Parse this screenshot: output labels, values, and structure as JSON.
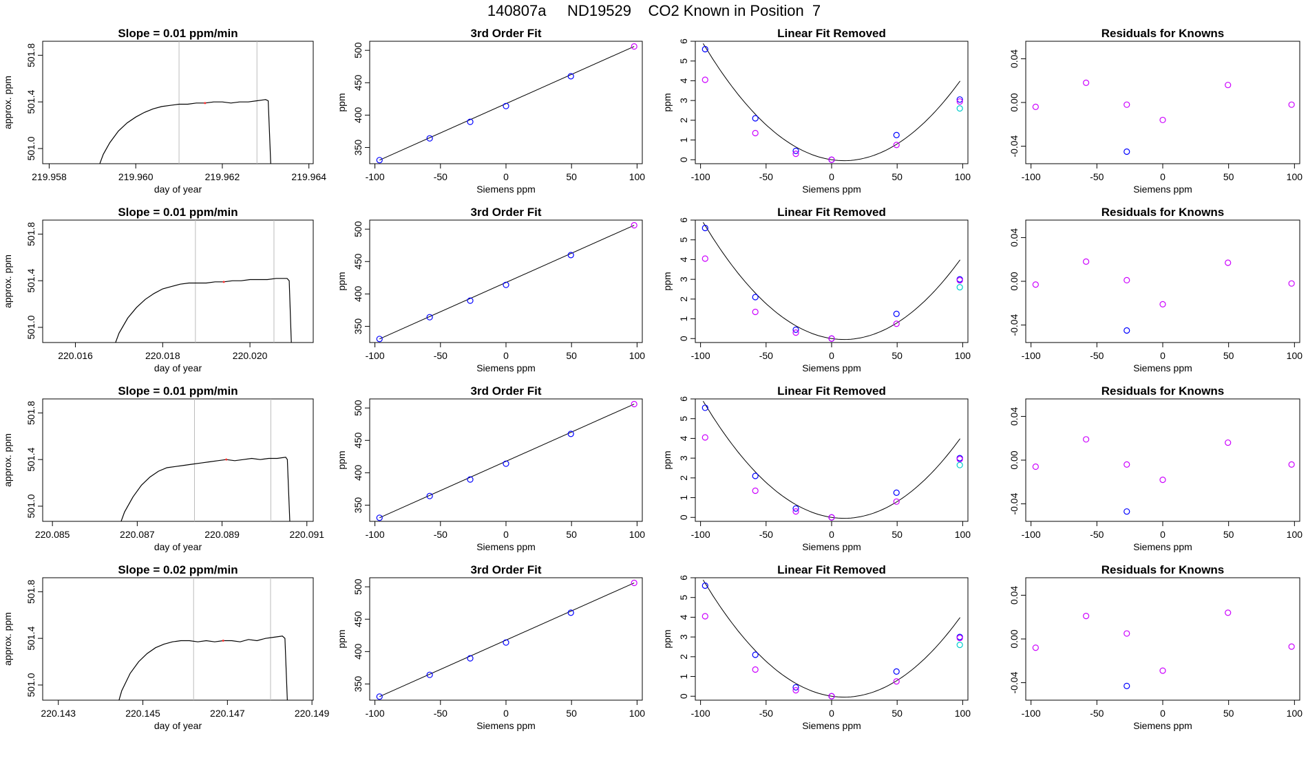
{
  "figure": {
    "title": "140807a     ND19529    CO2 Known in Position  7"
  },
  "labels": {
    "day_of_year": "day of year",
    "approx_ppm": "approx. ppm",
    "ppm": "ppm",
    "siemens": "Siemens ppm",
    "fit_title": "3rd Order Fit",
    "lin_title": "Linear Fit Removed",
    "res_title": "Residuals for Knowns"
  },
  "colors": {
    "line": "#000000",
    "blue": "#0000ff",
    "magenta": "#cc00ff",
    "cyan": "#00cccc",
    "vline": "#bbbbbb",
    "marker": "#ff3333"
  },
  "chart_data": [
    {
      "type": "line",
      "row": 0,
      "title": "Slope =  0.01  ppm/min",
      "xlabel": "day of year",
      "ylabel": "approx. ppm",
      "xlim": [
        219.95785,
        219.9641
      ],
      "ylim": [
        500.87,
        501.92
      ],
      "xticks": [
        "219.958",
        "219.960",
        "219.962",
        "219.964"
      ],
      "yticks": [
        "501.0",
        "501.4",
        "501.8"
      ],
      "vlines": [
        219.961,
        219.9628
      ],
      "series": [
        {
          "name": "signal",
          "x": [
            219.95915,
            219.95925,
            219.9594,
            219.9596,
            219.9598,
            219.96,
            219.9602,
            219.9604,
            219.9606,
            219.9608,
            219.961,
            219.9612,
            219.9614,
            219.9616,
            219.9618,
            219.962,
            219.9622,
            219.9624,
            219.9626,
            219.9628,
            219.963,
            219.96306,
            219.96312
          ],
          "y": [
            500.85,
            500.95,
            501.05,
            501.15,
            501.22,
            501.27,
            501.31,
            501.34,
            501.36,
            501.37,
            501.38,
            501.38,
            501.39,
            501.39,
            501.4,
            501.4,
            501.39,
            501.4,
            501.4,
            501.41,
            501.42,
            501.41,
            500.85
          ]
        }
      ]
    },
    {
      "type": "line",
      "row": 1,
      "title": "Slope =  0.01  ppm/min",
      "xlabel": "day of year",
      "ylabel": "approx. ppm",
      "xlim": [
        220.01525,
        220.02145
      ],
      "ylim": [
        500.87,
        501.92
      ],
      "xticks": [
        "220.016",
        "220.018",
        "220.020"
      ],
      "yticks": [
        "501.0",
        "501.4",
        "501.8"
      ],
      "vlines": [
        220.01875,
        220.02055
      ],
      "series": [
        {
          "name": "signal",
          "x": [
            220.0169,
            220.017,
            220.0172,
            220.0174,
            220.0176,
            220.0178,
            220.018,
            220.0182,
            220.0184,
            220.0186,
            220.0188,
            220.019,
            220.0192,
            220.0194,
            220.0196,
            220.0198,
            220.02,
            220.0202,
            220.0204,
            220.0206,
            220.02085,
            220.0209,
            220.02095
          ],
          "y": [
            500.85,
            500.95,
            501.08,
            501.17,
            501.24,
            501.29,
            501.33,
            501.35,
            501.37,
            501.38,
            501.38,
            501.38,
            501.39,
            501.39,
            501.4,
            501.4,
            501.41,
            501.41,
            501.41,
            501.42,
            501.42,
            501.4,
            500.85
          ]
        }
      ]
    },
    {
      "type": "line",
      "row": 2,
      "title": "Slope =  0.01  ppm/min",
      "xlabel": "day of year",
      "ylabel": "approx. ppm",
      "xlim": [
        220.08477,
        220.09115
      ],
      "ylim": [
        500.87,
        501.92
      ],
      "xticks": [
        "220.085",
        "220.087",
        "220.089",
        "220.091"
      ],
      "yticks": [
        "501.0",
        "501.4",
        "501.8"
      ],
      "vlines": [
        220.08835,
        220.09015
      ],
      "series": [
        {
          "name": "signal",
          "x": [
            220.0866,
            220.0867,
            220.0869,
            220.0871,
            220.0873,
            220.0875,
            220.0877,
            220.0879,
            220.0881,
            220.0883,
            220.0885,
            220.0887,
            220.0889,
            220.0891,
            220.0893,
            220.0895,
            220.0897,
            220.0899,
            220.0901,
            220.0903,
            220.0905,
            220.09054,
            220.0906
          ],
          "y": [
            500.85,
            500.95,
            501.08,
            501.18,
            501.25,
            501.3,
            501.33,
            501.34,
            501.35,
            501.36,
            501.37,
            501.38,
            501.39,
            501.4,
            501.39,
            501.4,
            501.41,
            501.4,
            501.41,
            501.41,
            501.42,
            501.4,
            500.85
          ]
        }
      ]
    },
    {
      "type": "line",
      "row": 3,
      "title": "Slope =  0.02  ppm/min",
      "xlabel": "day of year",
      "ylabel": "approx. ppm",
      "xlim": [
        220.14263,
        220.14903
      ],
      "ylim": [
        500.87,
        501.92
      ],
      "xticks": [
        "220.143",
        "220.145",
        "220.147",
        "220.149"
      ],
      "yticks": [
        "501.0",
        "501.4",
        "501.8"
      ],
      "vlines": [
        220.1462,
        220.14802
      ],
      "series": [
        {
          "name": "signal",
          "x": [
            220.14442,
            220.1445,
            220.1447,
            220.1449,
            220.1451,
            220.1453,
            220.1455,
            220.1457,
            220.1459,
            220.1461,
            220.1463,
            220.1465,
            220.1467,
            220.1469,
            220.1471,
            220.1473,
            220.1475,
            220.1477,
            220.1479,
            220.1481,
            220.1483,
            220.14836,
            220.14842
          ],
          "y": [
            500.85,
            500.95,
            501.1,
            501.2,
            501.27,
            501.32,
            501.35,
            501.37,
            501.38,
            501.38,
            501.37,
            501.38,
            501.37,
            501.38,
            501.38,
            501.37,
            501.39,
            501.38,
            501.4,
            501.41,
            501.42,
            501.4,
            500.85
          ]
        }
      ]
    },
    {
      "type": "scatter",
      "row": 0,
      "title": "3rd Order Fit",
      "xlabel": "Siemens ppm",
      "ylabel": "ppm",
      "xlim": [
        -104,
        104
      ],
      "ylim": [
        325,
        514
      ],
      "xticks": [
        -100,
        -50,
        0,
        50,
        100
      ],
      "yticks": [
        350,
        400,
        450,
        500
      ],
      "x": [
        -96.5,
        -58.2,
        -27.3,
        0,
        49.5,
        97.8
      ],
      "y": [
        330.5,
        364.1,
        389.6,
        414.0,
        460.0,
        506.0
      ],
      "fit": {
        "from": [
          -96.5,
          330.5
        ],
        "to": [
          97.8,
          506.0
        ]
      }
    },
    {
      "type": "scatter",
      "row": 1,
      "title": "3rd Order Fit",
      "xlabel": "Siemens ppm",
      "ylabel": "ppm",
      "xlim": [
        -104,
        104
      ],
      "ylim": [
        325,
        514
      ],
      "xticks": [
        -100,
        -50,
        0,
        50,
        100
      ],
      "yticks": [
        350,
        400,
        450,
        500
      ],
      "x": [
        -96.5,
        -58.2,
        -27.3,
        0,
        49.5,
        97.8
      ],
      "y": [
        330.5,
        364.1,
        389.6,
        414.0,
        460.0,
        506.0
      ],
      "fit": {
        "from": [
          -96.5,
          330.5
        ],
        "to": [
          97.8,
          506.0
        ]
      }
    },
    {
      "type": "scatter",
      "row": 2,
      "title": "3rd Order Fit",
      "xlabel": "Siemens ppm",
      "ylabel": "ppm",
      "xlim": [
        -104,
        104
      ],
      "ylim": [
        325,
        514
      ],
      "xticks": [
        -100,
        -50,
        0,
        50,
        100
      ],
      "yticks": [
        350,
        400,
        450,
        500
      ],
      "x": [
        -96.5,
        -58.2,
        -27.3,
        0,
        49.5,
        97.8
      ],
      "y": [
        330.5,
        364.1,
        389.6,
        414.0,
        460.0,
        506.0
      ],
      "fit": {
        "from": [
          -96.5,
          330.5
        ],
        "to": [
          97.8,
          506.0
        ]
      }
    },
    {
      "type": "scatter",
      "row": 3,
      "title": "3rd Order Fit",
      "xlabel": "Siemens ppm",
      "ylabel": "ppm",
      "xlim": [
        -104,
        104
      ],
      "ylim": [
        325,
        514
      ],
      "xticks": [
        -100,
        -50,
        0,
        50,
        100
      ],
      "yticks": [
        350,
        400,
        450,
        500
      ],
      "x": [
        -96.5,
        -58.2,
        -27.3,
        0,
        49.5,
        97.8
      ],
      "y": [
        330.5,
        364.1,
        389.6,
        414.0,
        460.0,
        506.0
      ],
      "fit": {
        "from": [
          -96.5,
          330.5
        ],
        "to": [
          97.8,
          506.0
        ]
      }
    },
    {
      "type": "scatter",
      "row": 0,
      "title": "Linear Fit Removed",
      "xlabel": "Siemens ppm",
      "ylabel": "ppm",
      "xlim": [
        -104,
        104
      ],
      "ylim": [
        -0.2,
        6.0
      ],
      "xticks": [
        -100,
        -50,
        0,
        50,
        100
      ],
      "yticks": [
        0,
        1,
        2,
        3,
        4,
        5,
        6
      ],
      "curve": {
        "a": 0.000514,
        "b": -0.0097,
        "x0": -98,
        "x1": 98
      },
      "series": [
        {
          "name": "blue",
          "x": [
            -96.5,
            -58.2,
            -27.3,
            0,
            49.5,
            97.8
          ],
          "y": [
            5.6,
            2.1,
            0.45,
            0.0,
            1.25,
            3.05
          ]
        },
        {
          "name": "magenta",
          "x": [
            -96.5,
            -58.2,
            -27.3,
            0,
            49.5,
            97.8
          ],
          "y": [
            4.05,
            1.35,
            0.3,
            0.0,
            0.75,
            2.95
          ]
        },
        {
          "name": "cyan",
          "x": [
            97.8
          ],
          "y": [
            2.6
          ]
        }
      ]
    },
    {
      "type": "scatter",
      "row": 1,
      "title": "Linear Fit Removed",
      "xlabel": "Siemens ppm",
      "ylabel": "ppm",
      "xlim": [
        -104,
        104
      ],
      "ylim": [
        -0.2,
        6.0
      ],
      "xticks": [
        -100,
        -50,
        0,
        50,
        100
      ],
      "yticks": [
        0,
        1,
        2,
        3,
        4,
        5,
        6
      ],
      "curve": {
        "a": 0.000514,
        "b": -0.0097,
        "x0": -98,
        "x1": 98
      },
      "series": [
        {
          "name": "blue",
          "x": [
            -96.5,
            -58.2,
            -27.3,
            0,
            49.5,
            97.8
          ],
          "y": [
            5.6,
            2.1,
            0.45,
            0.0,
            1.25,
            3.0
          ]
        },
        {
          "name": "magenta",
          "x": [
            -96.5,
            -58.2,
            -27.3,
            0,
            49.5,
            97.8
          ],
          "y": [
            4.05,
            1.35,
            0.3,
            0.0,
            0.75,
            2.95
          ]
        },
        {
          "name": "cyan",
          "x": [
            97.8
          ],
          "y": [
            2.6
          ]
        }
      ]
    },
    {
      "type": "scatter",
      "row": 2,
      "title": "Linear Fit Removed",
      "xlabel": "Siemens ppm",
      "ylabel": "ppm",
      "xlim": [
        -104,
        104
      ],
      "ylim": [
        -0.2,
        6.0
      ],
      "xticks": [
        -100,
        -50,
        0,
        50,
        100
      ],
      "yticks": [
        0,
        1,
        2,
        3,
        4,
        5,
        6
      ],
      "curve": {
        "a": 0.000514,
        "b": -0.0097,
        "x0": -98,
        "x1": 98
      },
      "series": [
        {
          "name": "blue",
          "x": [
            -96.5,
            -58.2,
            -27.3,
            0,
            49.5,
            97.8
          ],
          "y": [
            5.55,
            2.1,
            0.45,
            0.0,
            1.25,
            3.0
          ]
        },
        {
          "name": "magenta",
          "x": [
            -96.5,
            -58.2,
            -27.3,
            0,
            49.5,
            97.8
          ],
          "y": [
            4.05,
            1.35,
            0.3,
            0.0,
            0.8,
            2.95
          ]
        },
        {
          "name": "cyan",
          "x": [
            97.8
          ],
          "y": [
            2.65
          ]
        }
      ]
    },
    {
      "type": "scatter",
      "row": 3,
      "title": "Linear Fit Removed",
      "xlabel": "Siemens ppm",
      "ylabel": "ppm",
      "xlim": [
        -104,
        104
      ],
      "ylim": [
        -0.2,
        6.0
      ],
      "xticks": [
        -100,
        -50,
        0,
        50,
        100
      ],
      "yticks": [
        0,
        1,
        2,
        3,
        4,
        5,
        6
      ],
      "curve": {
        "a": 0.000514,
        "b": -0.0097,
        "x0": -98,
        "x1": 98
      },
      "series": [
        {
          "name": "blue",
          "x": [
            -96.5,
            -58.2,
            -27.3,
            0,
            49.5,
            97.8
          ],
          "y": [
            5.6,
            2.1,
            0.45,
            0.0,
            1.25,
            3.0
          ]
        },
        {
          "name": "magenta",
          "x": [
            -96.5,
            -58.2,
            -27.3,
            0,
            49.5,
            97.8
          ],
          "y": [
            4.05,
            1.35,
            0.3,
            0.0,
            0.75,
            2.95
          ]
        },
        {
          "name": "cyan",
          "x": [
            97.8
          ],
          "y": [
            2.6
          ]
        }
      ]
    },
    {
      "type": "scatter",
      "row": 0,
      "title": "Residuals for Knowns",
      "xlabel": "Siemens ppm",
      "ylabel": "",
      "xlim": [
        -104,
        104
      ],
      "ylim": [
        -0.056,
        0.056
      ],
      "xticks": [
        -100,
        -50,
        0,
        50,
        100
      ],
      "yticks": [
        "-0.04",
        "0.00",
        "0.04"
      ],
      "series": [
        {
          "name": "magenta",
          "x": [
            -96.5,
            -58.2,
            -27.3,
            0,
            49.5,
            97.8
          ],
          "y": [
            -0.004,
            0.018,
            -0.002,
            -0.016,
            0.016,
            -0.002
          ]
        },
        {
          "name": "blue",
          "x": [
            -27.3
          ],
          "y": [
            -0.045
          ]
        }
      ]
    },
    {
      "type": "scatter",
      "row": 1,
      "title": "Residuals for Knowns",
      "xlabel": "Siemens ppm",
      "ylabel": "",
      "xlim": [
        -104,
        104
      ],
      "ylim": [
        -0.056,
        0.056
      ],
      "xticks": [
        -100,
        -50,
        0,
        50,
        100
      ],
      "yticks": [
        "-0.04",
        "0.00",
        "0.04"
      ],
      "series": [
        {
          "name": "magenta",
          "x": [
            -96.5,
            -58.2,
            -27.3,
            0,
            49.5,
            97.8
          ],
          "y": [
            -0.003,
            0.018,
            0.001,
            -0.021,
            0.017,
            -0.002
          ]
        },
        {
          "name": "blue",
          "x": [
            -27.3
          ],
          "y": [
            -0.045
          ]
        }
      ]
    },
    {
      "type": "scatter",
      "row": 2,
      "title": "Residuals for Knowns",
      "xlabel": "Siemens ppm",
      "ylabel": "",
      "xlim": [
        -104,
        104
      ],
      "ylim": [
        -0.056,
        0.056
      ],
      "xticks": [
        -100,
        -50,
        0,
        50,
        100
      ],
      "yticks": [
        "-0.04",
        "0.00",
        "0.04"
      ],
      "series": [
        {
          "name": "magenta",
          "x": [
            -96.5,
            -58.2,
            -27.3,
            0,
            49.5,
            97.8
          ],
          "y": [
            -0.006,
            0.019,
            -0.004,
            -0.018,
            0.016,
            -0.004
          ]
        },
        {
          "name": "blue",
          "x": [
            -27.3
          ],
          "y": [
            -0.047
          ]
        }
      ]
    },
    {
      "type": "scatter",
      "row": 3,
      "title": "Residuals for Knowns",
      "xlabel": "Siemens ppm",
      "ylabel": "",
      "xlim": [
        -104,
        104
      ],
      "ylim": [
        -0.056,
        0.056
      ],
      "xticks": [
        -100,
        -50,
        0,
        50,
        100
      ],
      "yticks": [
        "-0.04",
        "0.00",
        "0.04"
      ],
      "series": [
        {
          "name": "magenta",
          "x": [
            -96.5,
            -58.2,
            -27.3,
            0,
            49.5,
            97.8
          ],
          "y": [
            -0.008,
            0.021,
            0.005,
            -0.029,
            0.024,
            -0.007
          ]
        },
        {
          "name": "blue",
          "x": [
            -27.3
          ],
          "y": [
            -0.043
          ]
        }
      ]
    }
  ]
}
